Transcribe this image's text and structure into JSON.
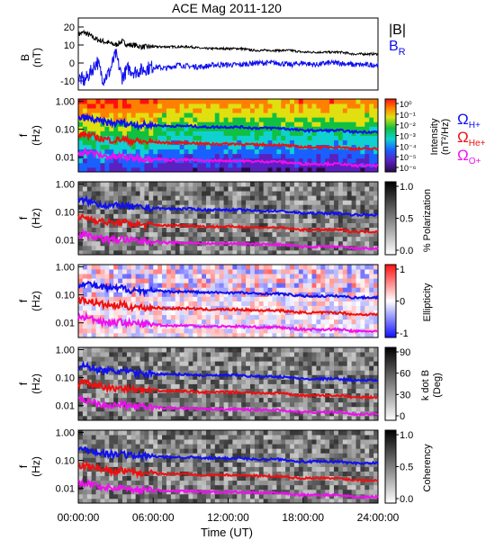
{
  "title": "ACE Mag 2011-120",
  "time_axis": {
    "label": "Time (UT)",
    "ticks": [
      "00:00:00",
      "06:00:00",
      "12:00:00",
      "18:00:00",
      "24:00:00"
    ],
    "range_hours": [
      0,
      24
    ]
  },
  "colors": {
    "B_magnitude": "#000000",
    "B_R": "#1010ee",
    "gyro_H": "#1010ee",
    "gyro_He": "#ee1010",
    "gyro_O": "#ee10ee"
  },
  "legend_B": {
    "mag": "|B|",
    "br": "B",
    "br_sub": "R"
  },
  "legend_gyro": {
    "omega": "Ω",
    "h_sub": "H+",
    "he_sub": "He+",
    "o_sub": "O+"
  },
  "panels": {
    "p1": {
      "ylabel_top": "B",
      "ylabel_bottom": "(nT)",
      "ticks": [
        "20",
        "10",
        "0",
        "-10"
      ],
      "ylim": [
        -15,
        25
      ]
    },
    "freq_ylabel_top": "f",
    "freq_ylabel_bottom": "(Hz)",
    "freq_ticks": [
      "1.00",
      "0.10",
      "0.01"
    ],
    "freq_ylim_hz": [
      0.003,
      1.2
    ],
    "p2": {
      "colorbar_label": "Intensity",
      "colorbar_unit": "(nT²/Hz)",
      "colorbar_ticks": [
        "10⁰",
        "10⁻¹",
        "10⁻²",
        "10⁻³",
        "10⁻⁴",
        "10⁻⁵",
        "10⁻⁶"
      ],
      "colorbar_range": "10^-6 to 10^0 (log)"
    },
    "p3": {
      "colorbar_label": "% Polarization",
      "colorbar_ticks": [
        "1.0",
        "0.5",
        "0.0"
      ],
      "colorbar_range": [
        0,
        1
      ]
    },
    "p4": {
      "colorbar_label": "Ellipticity",
      "colorbar_ticks": [
        "1",
        "0",
        "-1"
      ],
      "colorbar_range": [
        -1,
        1
      ]
    },
    "p5": {
      "colorbar_label_top": "k dot B",
      "colorbar_label_bottom": "(Deg)",
      "colorbar_ticks": [
        "90",
        "60",
        "30",
        "0"
      ],
      "colorbar_range": [
        0,
        90
      ]
    },
    "p6": {
      "colorbar_label": "Coherency",
      "colorbar_ticks": [
        "1.0",
        "0.5",
        "0.0"
      ],
      "colorbar_range": [
        0,
        1
      ]
    }
  },
  "chart_data": {
    "type": "line",
    "title": "ACE Mag 2011-120",
    "xlabel": "Time (UT)",
    "xlim_hours": [
      0,
      24
    ],
    "x_hours": [
      0,
      0.5,
      1,
      1.5,
      2,
      2.5,
      3,
      3.5,
      4,
      4.5,
      5,
      5.5,
      6,
      7,
      8,
      9,
      10,
      11,
      12,
      13,
      14,
      15,
      16,
      17,
      18,
      19,
      20,
      21,
      22,
      23,
      24
    ],
    "series": [
      {
        "name": "|B|",
        "values": [
          16,
          17,
          15,
          13,
          12,
          11,
          10,
          12,
          10,
          10,
          9,
          9,
          9,
          9,
          9,
          9,
          8,
          8,
          8,
          8,
          7,
          7,
          7,
          7,
          6,
          6,
          6,
          6,
          5,
          5,
          5
        ]
      },
      {
        "name": "B_R",
        "values": [
          -8,
          -10,
          -5,
          1,
          -9,
          -5,
          5,
          -8,
          -3,
          -5,
          -4,
          -3,
          -2,
          -3,
          -1,
          -2,
          -2,
          -1,
          -1,
          -1,
          0,
          0,
          0,
          -1,
          0,
          -1,
          0,
          0,
          -1,
          -1,
          -1
        ]
      },
      {
        "name": "Ω_H+ (Hz)",
        "values": [
          0.24,
          0.26,
          0.23,
          0.2,
          0.18,
          0.17,
          0.16,
          0.18,
          0.15,
          0.15,
          0.14,
          0.14,
          0.14,
          0.13,
          0.13,
          0.13,
          0.12,
          0.12,
          0.12,
          0.12,
          0.11,
          0.11,
          0.11,
          0.1,
          0.09,
          0.09,
          0.09,
          0.09,
          0.08,
          0.08,
          0.08
        ]
      },
      {
        "name": "Ω_He+ (Hz)",
        "values": [
          0.06,
          0.065,
          0.058,
          0.05,
          0.045,
          0.042,
          0.04,
          0.045,
          0.038,
          0.038,
          0.035,
          0.035,
          0.035,
          0.033,
          0.033,
          0.033,
          0.03,
          0.03,
          0.03,
          0.03,
          0.028,
          0.028,
          0.028,
          0.025,
          0.023,
          0.023,
          0.023,
          0.023,
          0.02,
          0.02,
          0.02
        ]
      },
      {
        "name": "Ω_O+ (Hz)",
        "values": [
          0.015,
          0.016,
          0.0145,
          0.0125,
          0.011,
          0.0105,
          0.01,
          0.011,
          0.0095,
          0.0095,
          0.009,
          0.009,
          0.009,
          0.008,
          0.008,
          0.008,
          0.0075,
          0.0075,
          0.0075,
          0.0075,
          0.007,
          0.007,
          0.007,
          0.0063,
          0.0058,
          0.0058,
          0.0058,
          0.0058,
          0.005,
          0.005,
          0.005
        ]
      }
    ]
  }
}
